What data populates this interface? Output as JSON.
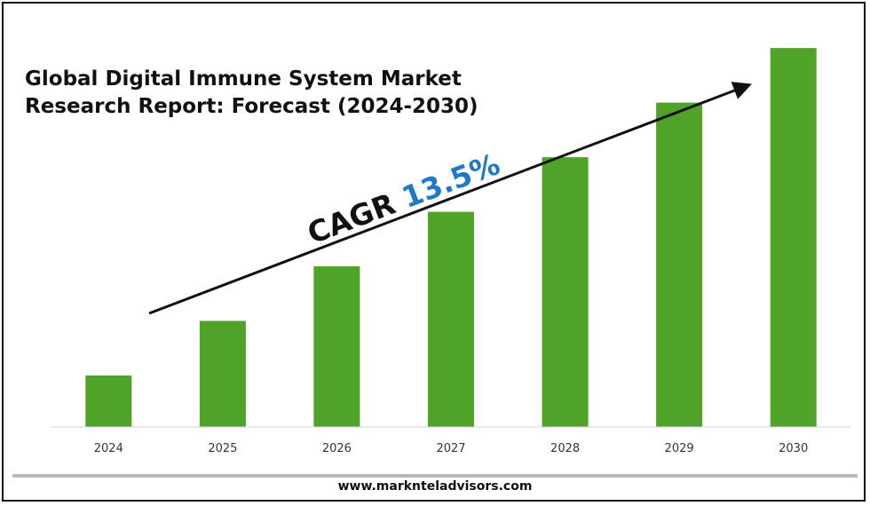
{
  "chart_data": {
    "type": "bar",
    "title": "Global Digital Immune System Market\nResearch Report: Forecast (2024-2030)",
    "xlabel": "",
    "ylabel": "",
    "categories": [
      "2024",
      "2025",
      "2026",
      "2027",
      "2028",
      "2029",
      "2030"
    ],
    "values": [
      1.0,
      2.06,
      3.12,
      4.18,
      5.24,
      6.3,
      7.36
    ],
    "ylim": [
      0,
      8
    ],
    "grid": false,
    "legend": "none",
    "bar_color": "#4fa428",
    "annotation": {
      "prefix": "CAGR",
      "value": "13.5%",
      "value_color": "#1f78c8"
    }
  },
  "footer": {
    "url": "www.marknteladvisors.com"
  }
}
